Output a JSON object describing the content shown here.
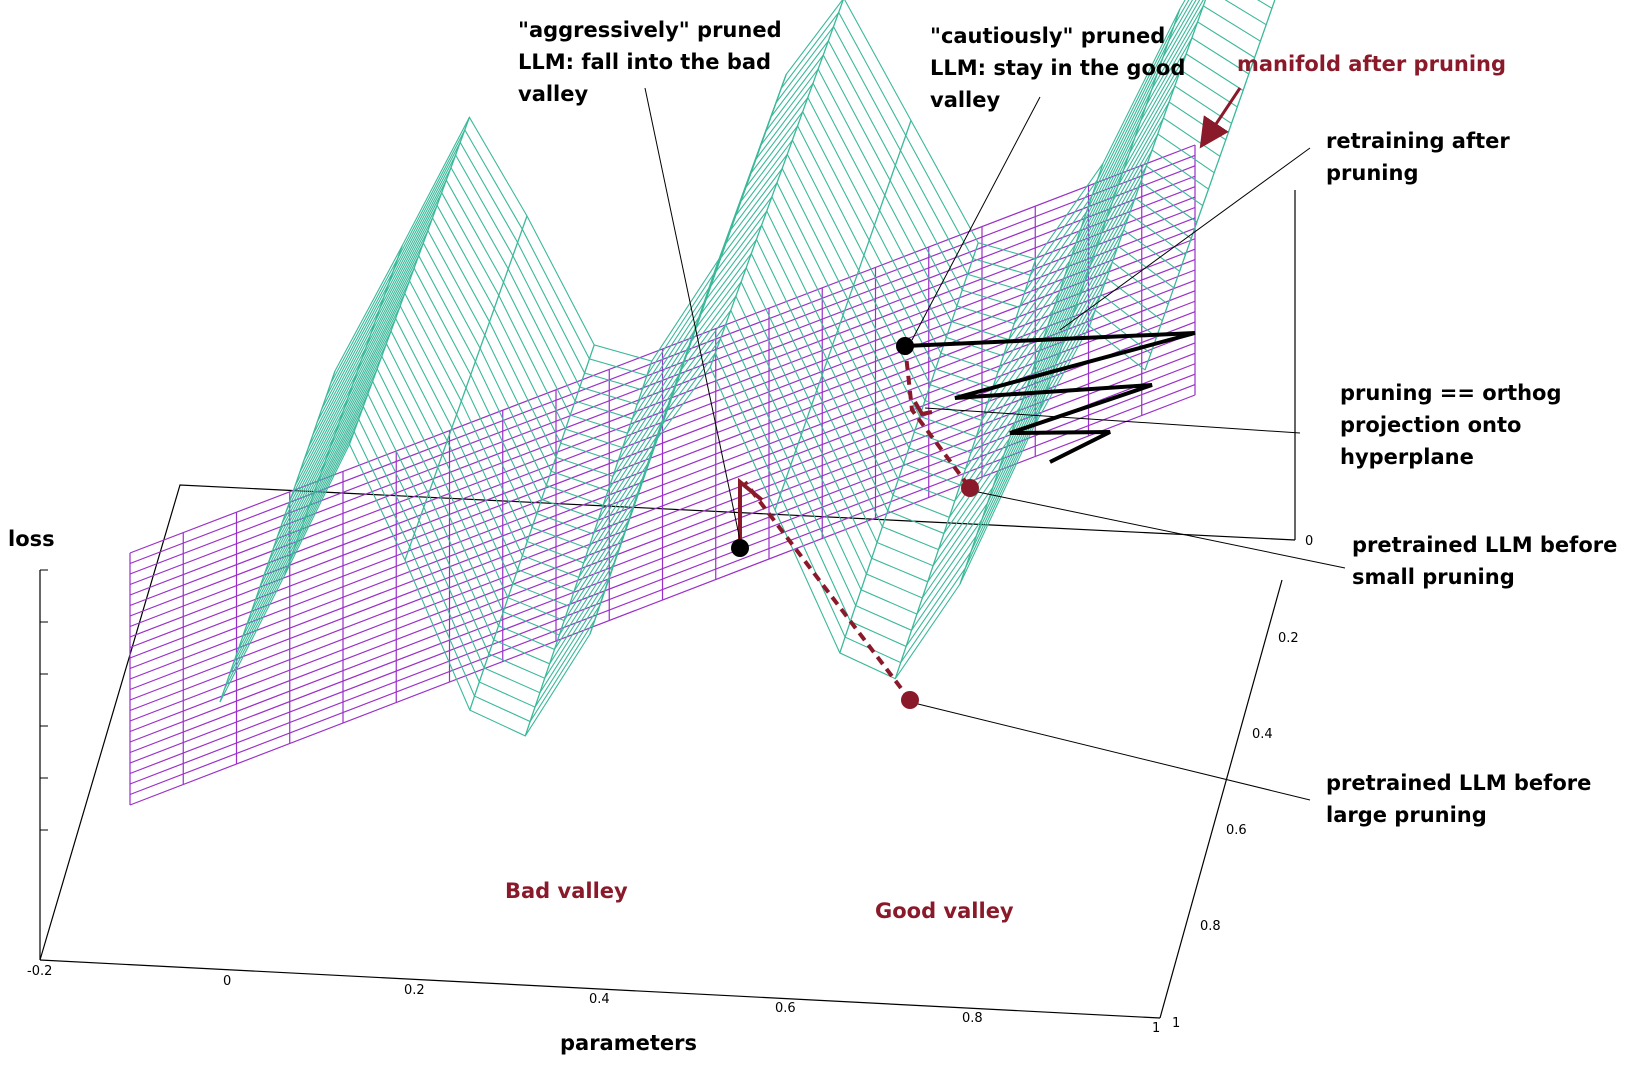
{
  "annotations": {
    "aggressive": [
      "\"aggressively\" pruned",
      "LLM: fall into the bad",
      "valley"
    ],
    "cautious": [
      "\"cautiously\" pruned",
      "LLM: stay in the good",
      "valley"
    ],
    "manifold": "manifold after pruning",
    "retraining": [
      "retraining after",
      "pruning"
    ],
    "projection": [
      "pruning == orthog",
      "projection onto",
      "hyperplane"
    ],
    "small_pruning": [
      "pretrained LLM before",
      "small pruning"
    ],
    "large_pruning": [
      "pretrained LLM before",
      "large pruning"
    ],
    "bad_valley": "Bad valley",
    "good_valley": "Good valley"
  },
  "axes": {
    "z_label": "loss",
    "x_label": "parameters",
    "x_ticks": [
      "-0.2",
      "0",
      "0.2",
      "0.4",
      "0.6",
      "0.8",
      "1"
    ],
    "y_ticks": [
      "0",
      "0.2",
      "0.4",
      "0.6",
      "0.8",
      "1"
    ]
  },
  "colors": {
    "surface": "#3bb89a",
    "hyperplane": "#9b30c8",
    "dark_red": "#8a1a2a",
    "black": "#000000"
  }
}
